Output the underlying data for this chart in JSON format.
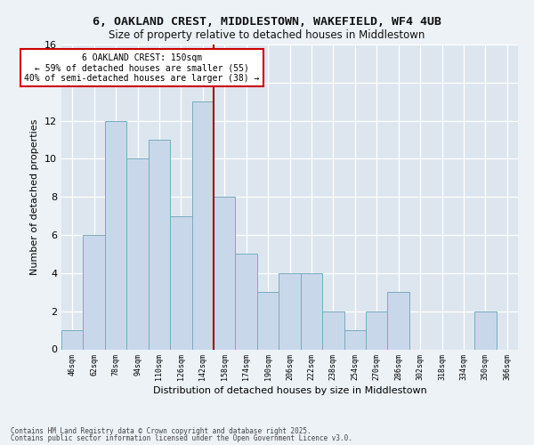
{
  "title_line1": "6, OAKLAND CREST, MIDDLESTOWN, WAKEFIELD, WF4 4UB",
  "title_line2": "Size of property relative to detached houses in Middlestown",
  "xlabel": "Distribution of detached houses by size in Middlestown",
  "ylabel": "Number of detached properties",
  "categories": [
    "46sqm",
    "62sqm",
    "78sqm",
    "94sqm",
    "110sqm",
    "126sqm",
    "142sqm",
    "158sqm",
    "174sqm",
    "190sqm",
    "206sqm",
    "222sqm",
    "238sqm",
    "254sqm",
    "270sqm",
    "286sqm",
    "302sqm",
    "318sqm",
    "334sqm",
    "350sqm",
    "366sqm"
  ],
  "values": [
    1,
    6,
    12,
    10,
    11,
    7,
    13,
    8,
    5,
    3,
    4,
    4,
    2,
    1,
    2,
    3,
    0,
    0,
    0,
    2,
    0
  ],
  "bar_color": "#c8d8ea",
  "bar_edge_color": "#7aaabf",
  "ref_line_color": "#aa0000",
  "annotation_text": "6 OAKLAND CREST: 150sqm\n← 59% of detached houses are smaller (55)\n40% of semi-detached houses are larger (38) →",
  "annotation_box_facecolor": "#ffffff",
  "annotation_box_edgecolor": "#cc0000",
  "ylim": [
    0,
    16
  ],
  "yticks": [
    0,
    2,
    4,
    6,
    8,
    10,
    12,
    14,
    16
  ],
  "plot_bgcolor": "#dde6ef",
  "fig_bgcolor": "#edf2f6",
  "grid_color": "#ffffff",
  "footer_line1": "Contains HM Land Registry data © Crown copyright and database right 2025.",
  "footer_line2": "Contains public sector information licensed under the Open Government Licence v3.0."
}
